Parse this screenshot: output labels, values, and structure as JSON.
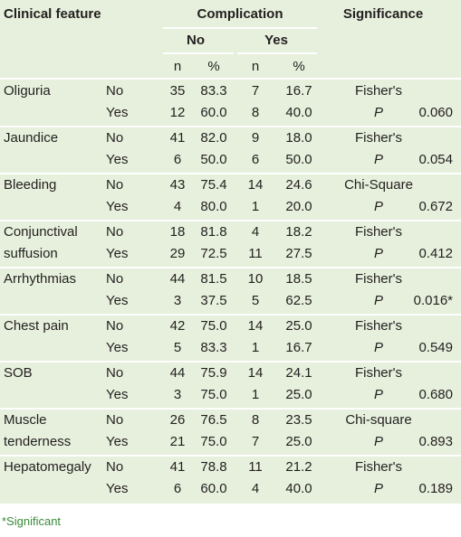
{
  "table": {
    "header": {
      "feature": "Clinical feature",
      "complication": "Complication",
      "significance": "Significance",
      "groups": [
        "No",
        "Yes"
      ],
      "sub": [
        "n",
        "%",
        "n",
        "%"
      ]
    },
    "rows": [
      {
        "feature": "Oliguria",
        "lines": [
          [
            "No",
            "35",
            "83.3",
            "7",
            "16.7",
            "Fisher's"
          ],
          [
            "Yes",
            "12",
            "60.0",
            "8",
            "40.0",
            "P"
          ]
        ],
        "p": "0.060"
      },
      {
        "feature": "Jaundice",
        "lines": [
          [
            "No",
            "41",
            "82.0",
            "9",
            "18.0",
            "Fisher's"
          ],
          [
            "Yes",
            "6",
            "50.0",
            "6",
            "50.0",
            "P"
          ]
        ],
        "p": "0.054"
      },
      {
        "feature": "Bleeding",
        "lines": [
          [
            "No",
            "43",
            "75.4",
            "14",
            "24.6",
            "Chi-Square"
          ],
          [
            "Yes",
            "4",
            "80.0",
            "1",
            "20.0",
            "P"
          ]
        ],
        "p": "0.672"
      },
      {
        "feature": "Conjunctival suffusion",
        "lines": [
          [
            "No",
            "18",
            "81.8",
            "4",
            "18.2",
            "Fisher's"
          ],
          [
            "Yes",
            "29",
            "72.5",
            "11",
            "27.5",
            "P"
          ]
        ],
        "p": "0.412"
      },
      {
        "feature": "Arrhythmias",
        "lines": [
          [
            "No",
            "44",
            "81.5",
            "10",
            "18.5",
            "Fisher's"
          ],
          [
            "Yes",
            "3",
            "37.5",
            "5",
            "62.5",
            "P"
          ]
        ],
        "p": "0.016*"
      },
      {
        "feature": "Chest pain",
        "lines": [
          [
            "No",
            "42",
            "75.0",
            "14",
            "25.0",
            "Fisher's"
          ],
          [
            "Yes",
            "5",
            "83.3",
            "1",
            "16.7",
            "P"
          ]
        ],
        "p": "0.549"
      },
      {
        "feature": "SOB",
        "lines": [
          [
            "No",
            "44",
            "75.9",
            "14",
            "24.1",
            "Fisher's"
          ],
          [
            "Yes",
            "3",
            "75.0",
            "1",
            "25.0",
            "P"
          ]
        ],
        "p": "0.680"
      },
      {
        "feature": "Muscle tenderness",
        "lines": [
          [
            "No",
            "26",
            "76.5",
            "8",
            "23.5",
            "Chi-square"
          ],
          [
            "Yes",
            "21",
            "75.0",
            "7",
            "25.0",
            "P"
          ]
        ],
        "p": "0.893"
      },
      {
        "feature": "Hepatomegaly",
        "lines": [
          [
            "No",
            "41",
            "78.8",
            "11",
            "21.2",
            "Fisher's"
          ],
          [
            "Yes",
            "6",
            "60.0",
            "4",
            "40.0",
            "P"
          ]
        ],
        "p": "0.189"
      }
    ],
    "footnote": "*Significant"
  }
}
